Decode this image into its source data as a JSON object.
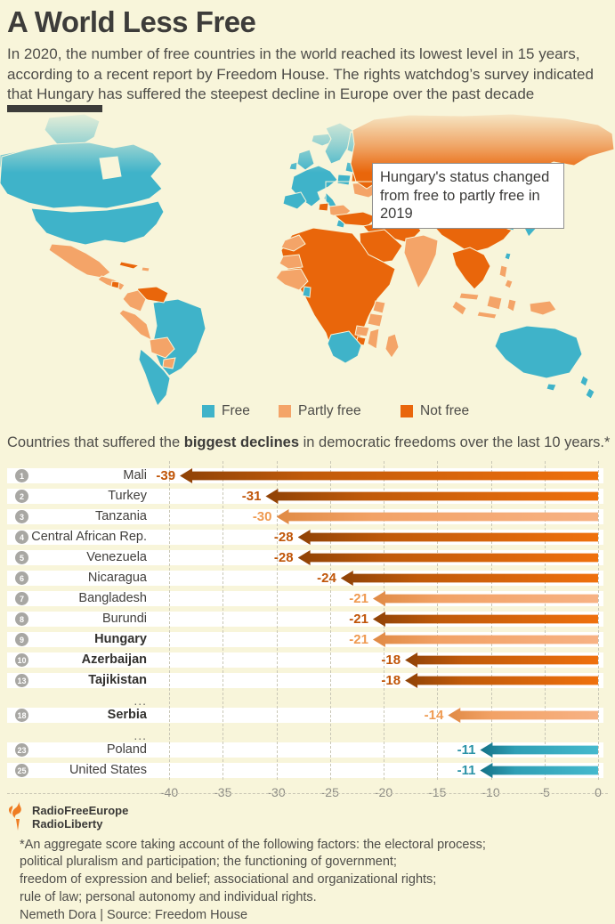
{
  "header": {
    "title": "A World Less Free",
    "subtitle": "In 2020, the number of free countries in the world reached its lowest level in 15 years, according to a recent report by Freedom House. The rights watchdog’s survey indicated that Hungary has suffered the steepest decline in Europe over the past decade"
  },
  "map": {
    "callout_text": "Hungary's status changed from free to partly free in 2019",
    "legend": [
      {
        "key": "free",
        "label": "Free"
      },
      {
        "key": "partly",
        "label": "Partly free"
      },
      {
        "key": "notfree",
        "label": "Not free"
      }
    ]
  },
  "chart_heading": {
    "pre": "Countries that suffered the ",
    "bold": "biggest declines",
    "post": " in democratic freedoms over the last 10 years.*"
  },
  "chart_data": {
    "type": "bar",
    "orientation": "horizontal",
    "title": "Countries that suffered the biggest declines in democratic freedoms over the last 10 years.*",
    "xlim": [
      -40,
      0
    ],
    "ticks": [
      -40,
      -35,
      -30,
      -25,
      -20,
      -15,
      -10,
      -5,
      0
    ],
    "grid": "dashed-vertical",
    "ellipsis_label": "...",
    "rows": [
      {
        "rank": "1",
        "country": "Mali",
        "value": -39,
        "status": "notfree",
        "bold": false
      },
      {
        "rank": "2",
        "country": "Turkey",
        "value": -31,
        "status": "notfree",
        "bold": false
      },
      {
        "rank": "3",
        "country": "Tanzania",
        "value": -30,
        "status": "partly",
        "bold": false
      },
      {
        "rank": "4",
        "country": "Central African Rep.",
        "value": -28,
        "status": "notfree",
        "bold": false
      },
      {
        "rank": "5",
        "country": "Venezuela",
        "value": -28,
        "status": "notfree",
        "bold": false
      },
      {
        "rank": "6",
        "country": "Nicaragua",
        "value": -24,
        "status": "notfree",
        "bold": false
      },
      {
        "rank": "7",
        "country": "Bangladesh",
        "value": -21,
        "status": "partly",
        "bold": false
      },
      {
        "rank": "8",
        "country": "Burundi",
        "value": -21,
        "status": "notfree",
        "bold": false
      },
      {
        "rank": "9",
        "country": "Hungary",
        "value": -21,
        "status": "partly",
        "bold": true
      },
      {
        "rank": "10",
        "country": "Azerbaijan",
        "value": -18,
        "status": "notfree",
        "bold": true
      },
      {
        "rank": "13",
        "country": "Tajikistan",
        "value": -18,
        "status": "notfree",
        "bold": true
      },
      {
        "ellipsis": true
      },
      {
        "rank": "18",
        "country": "Serbia",
        "value": -14,
        "status": "partly",
        "bold": true
      },
      {
        "ellipsis": true
      },
      {
        "rank": "23",
        "country": "Poland",
        "value": -11,
        "status": "free",
        "bold": false
      },
      {
        "rank": "25",
        "country": "United States",
        "value": -11,
        "status": "free",
        "bold": false
      }
    ]
  },
  "footer": {
    "logo_line1": "RadioFreeEurope",
    "logo_line2": "RadioLiberty",
    "footnote_lines": [
      "*An aggregate score taking account of the following factors: the electoral process;",
      "political pluralism and participation; the functioning of government;",
      "freedom of expression and belief; associational and organizational rights;",
      "rule of law; personal autonomy and individual rights.",
      "Nemeth Dora | Source: Freedom House"
    ]
  },
  "colors": {
    "background": "#f8f5da",
    "ink": "#3d3c3a",
    "body": "#4e4d49",
    "free": "#3fb3c9",
    "partly": "#f4a468",
    "notfree": "#e9660b",
    "badge": "#a8a7a3",
    "grid": "#c9c7b6",
    "axis_text": "#8c8b84",
    "logo_orange": "#ef7d23",
    "value_colors": {
      "free": "#2b93a7",
      "partly": "#ef9a51",
      "notfree": "#c05508"
    },
    "bar_gradients": {
      "free": {
        "tip": "#137085",
        "mid": "#2f9fb5",
        "end": "#45b9cd"
      },
      "partly": {
        "tip": "#e08a45",
        "mid": "#f2a266",
        "end": "#f7b284"
      },
      "notfree": {
        "tip": "#8f4206",
        "mid": "#c05a0a",
        "end": "#ef700d"
      }
    }
  }
}
